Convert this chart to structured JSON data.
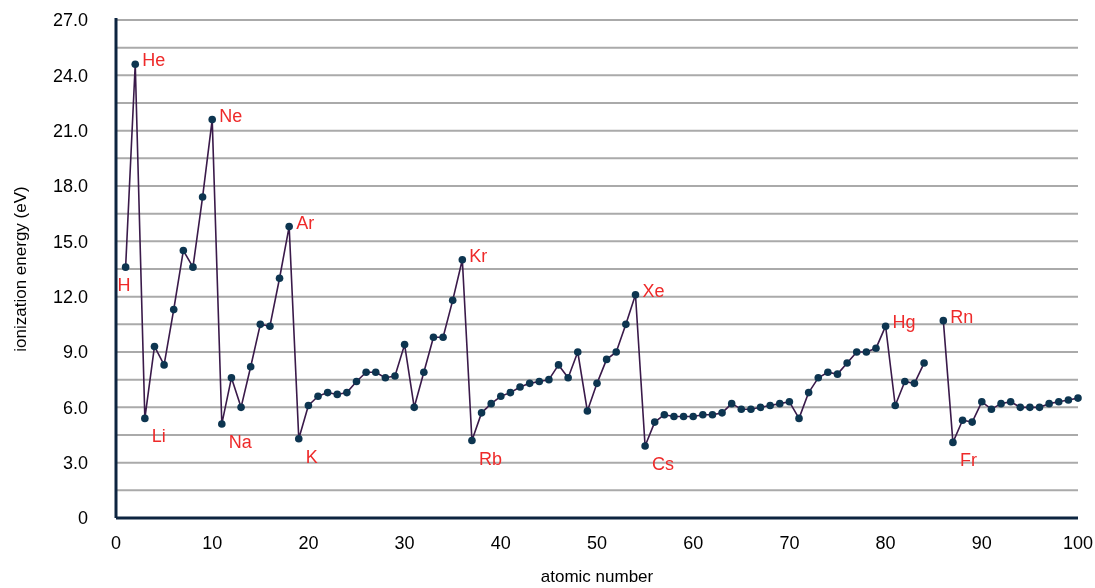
{
  "chart_data": {
    "type": "line",
    "xlabel": "atomic number",
    "ylabel": "ionization energy (eV)",
    "x": [
      1,
      2,
      3,
      4,
      5,
      6,
      7,
      8,
      9,
      10,
      11,
      12,
      13,
      14,
      15,
      16,
      17,
      18,
      19,
      20,
      21,
      22,
      23,
      24,
      25,
      26,
      27,
      28,
      29,
      30,
      31,
      32,
      33,
      34,
      35,
      36,
      37,
      38,
      39,
      40,
      41,
      42,
      43,
      44,
      45,
      46,
      47,
      48,
      49,
      50,
      51,
      52,
      53,
      54,
      55,
      56,
      57,
      58,
      59,
      60,
      61,
      62,
      63,
      64,
      65,
      66,
      67,
      68,
      69,
      70,
      71,
      72,
      73,
      74,
      75,
      76,
      77,
      78,
      79,
      80,
      81,
      82,
      83,
      84,
      85,
      86,
      87,
      88,
      89,
      90,
      91,
      92,
      93,
      94,
      95,
      96,
      97,
      98,
      99,
      100
    ],
    "series": [
      {
        "color": "#0d3550",
        "values": [
          13.6,
          24.6,
          5.4,
          9.3,
          8.3,
          11.3,
          14.5,
          13.6,
          17.4,
          21.6,
          5.1,
          7.6,
          6.0,
          8.2,
          10.5,
          10.4,
          13.0,
          15.8,
          4.3,
          6.1,
          6.6,
          6.8,
          6.7,
          6.8,
          7.4,
          7.9,
          7.9,
          7.6,
          7.7,
          9.4,
          6.0,
          7.9,
          9.8,
          9.8,
          11.8,
          14.0,
          4.2,
          5.7,
          6.2,
          6.6,
          6.8,
          7.1,
          7.3,
          7.4,
          7.5,
          8.3,
          7.6,
          9.0,
          5.8,
          7.3,
          8.6,
          9.0,
          10.5,
          12.1,
          3.9,
          5.2,
          5.6,
          5.5,
          5.5,
          5.5,
          5.6,
          5.6,
          5.7,
          6.2,
          5.9,
          5.9,
          6.0,
          6.1,
          6.2,
          6.3,
          5.4,
          6.8,
          7.6,
          7.9,
          7.8,
          8.4,
          9.0,
          9.0,
          9.2,
          10.4,
          6.1,
          7.4,
          7.3,
          8.4,
          null,
          10.7,
          4.1,
          5.3,
          5.2,
          6.3,
          5.9,
          6.2,
          6.3,
          6.0,
          6.0,
          6.0,
          6.2,
          6.3,
          6.4,
          6.5
        ]
      }
    ],
    "xlim": [
      0,
      100
    ],
    "xticks": [
      0,
      10,
      20,
      30,
      40,
      50,
      60,
      70,
      80,
      90,
      100
    ],
    "ylim": [
      0,
      27
    ],
    "yticks": [
      0,
      {
        "value": 1.5,
        "label": null
      },
      {
        "value": 3,
        "label": "3.0"
      },
      {
        "value": 4.5,
        "label": null
      },
      {
        "value": 6,
        "label": "6.0"
      },
      {
        "value": 7.5,
        "label": null
      },
      {
        "value": 9,
        "label": "9.0"
      },
      {
        "value": 10.5,
        "label": null
      },
      {
        "value": 12,
        "label": "12.0"
      },
      {
        "value": 13.5,
        "label": null
      },
      {
        "value": 15,
        "label": "15.0"
      },
      {
        "value": 16.5,
        "label": null
      },
      {
        "value": 18,
        "label": "18.0"
      },
      {
        "value": 19.5,
        "label": null
      },
      {
        "value": 21,
        "label": "21.0"
      },
      {
        "value": 22.5,
        "label": null
      },
      {
        "value": 24,
        "label": "24.0"
      },
      {
        "value": 25.5,
        "label": null
      },
      {
        "value": 27,
        "label": "27.0"
      }
    ],
    "grid": "y",
    "marker": "circle",
    "line_style": "solid",
    "annotations": [
      {
        "text": "H",
        "x": 1,
        "y": 13.6
      },
      {
        "text": "He",
        "x": 2,
        "y": 24.6
      },
      {
        "text": "Li",
        "x": 3,
        "y": 5.4
      },
      {
        "text": "Ne",
        "x": 10,
        "y": 21.6
      },
      {
        "text": "Na",
        "x": 11,
        "y": 5.1
      },
      {
        "text": "Ar",
        "x": 18,
        "y": 15.8
      },
      {
        "text": "K",
        "x": 19,
        "y": 4.3
      },
      {
        "text": "Kr",
        "x": 36,
        "y": 14.0
      },
      {
        "text": "Rb",
        "x": 37,
        "y": 4.2
      },
      {
        "text": "Xe",
        "x": 54,
        "y": 12.1
      },
      {
        "text": "Cs",
        "x": 55,
        "y": 3.9
      },
      {
        "text": "Hg",
        "x": 80,
        "y": 10.4
      },
      {
        "text": "Rn",
        "x": 86,
        "y": 10.7
      },
      {
        "text": "Fr",
        "x": 87,
        "y": 4.1
      }
    ]
  }
}
